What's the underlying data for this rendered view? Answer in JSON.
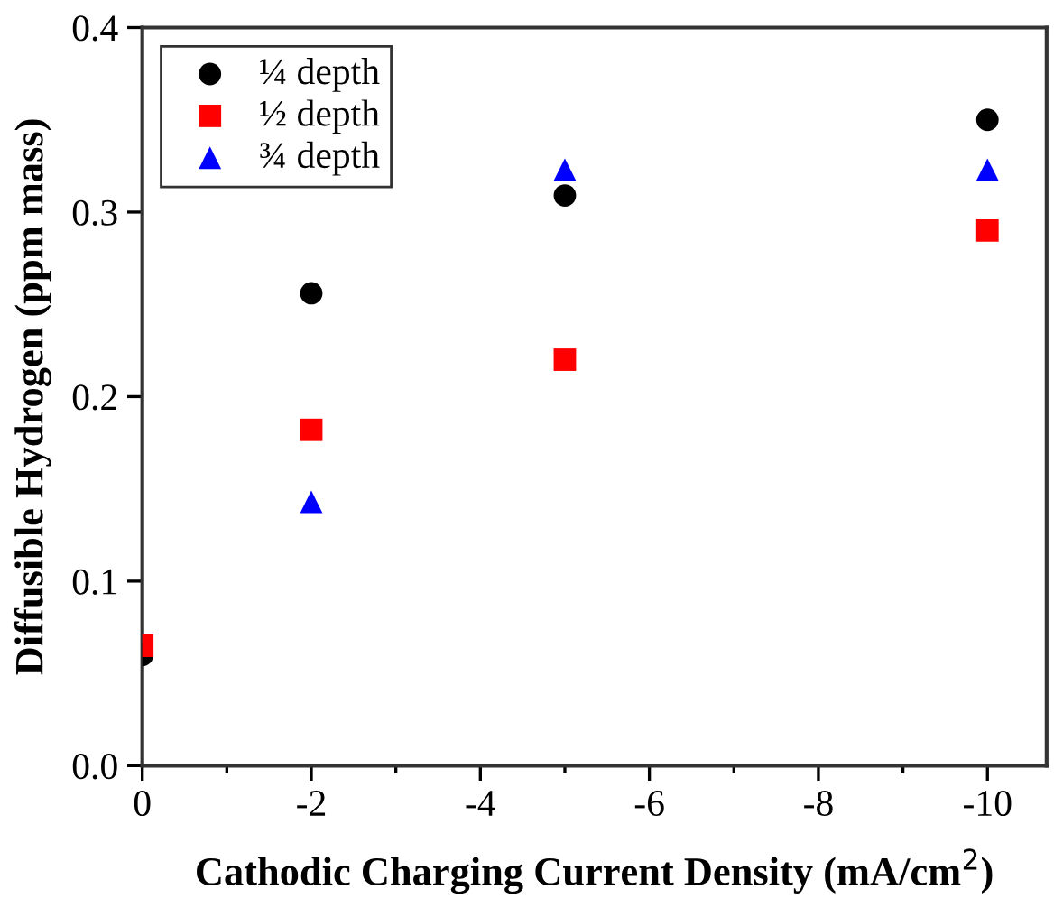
{
  "chart_data": {
    "type": "scatter",
    "xlabel": "Cathodic Charging Current Density (mA/cm$^{2}$)",
    "ylabel": "Diffusible Hydrogen (ppm mass)",
    "x": [
      0,
      -2,
      -5,
      -10
    ],
    "series": [
      {
        "name": "¼ depth",
        "color": "#000000",
        "marker": "circle",
        "values": [
          0.06,
          0.256,
          0.309,
          0.35
        ]
      },
      {
        "name": "½ depth",
        "color": "#ff0000",
        "marker": "square",
        "values": [
          0.065,
          0.182,
          0.22,
          0.29
        ]
      },
      {
        "name": "¾ depth",
        "color": "#0000ff",
        "marker": "triangle",
        "values": [
          null,
          0.143,
          0.323,
          0.323
        ]
      }
    ],
    "xlim": [
      0,
      -10.7
    ],
    "xticks": [
      0,
      {
        "value": -2,
        "label": "-2"
      },
      {
        "value": -4,
        "label": "-4"
      },
      {
        "value": -6,
        "label": "-6"
      },
      {
        "value": -8,
        "label": "-8"
      },
      {
        "value": -10,
        "label": "-10"
      }
    ],
    "ylim": [
      0,
      0.4
    ],
    "yticks": [
      {
        "value": 0,
        "label": "0.0"
      },
      0.1,
      0.2,
      0.3,
      0.4
    ],
    "grid": false,
    "legend": "top left"
  }
}
